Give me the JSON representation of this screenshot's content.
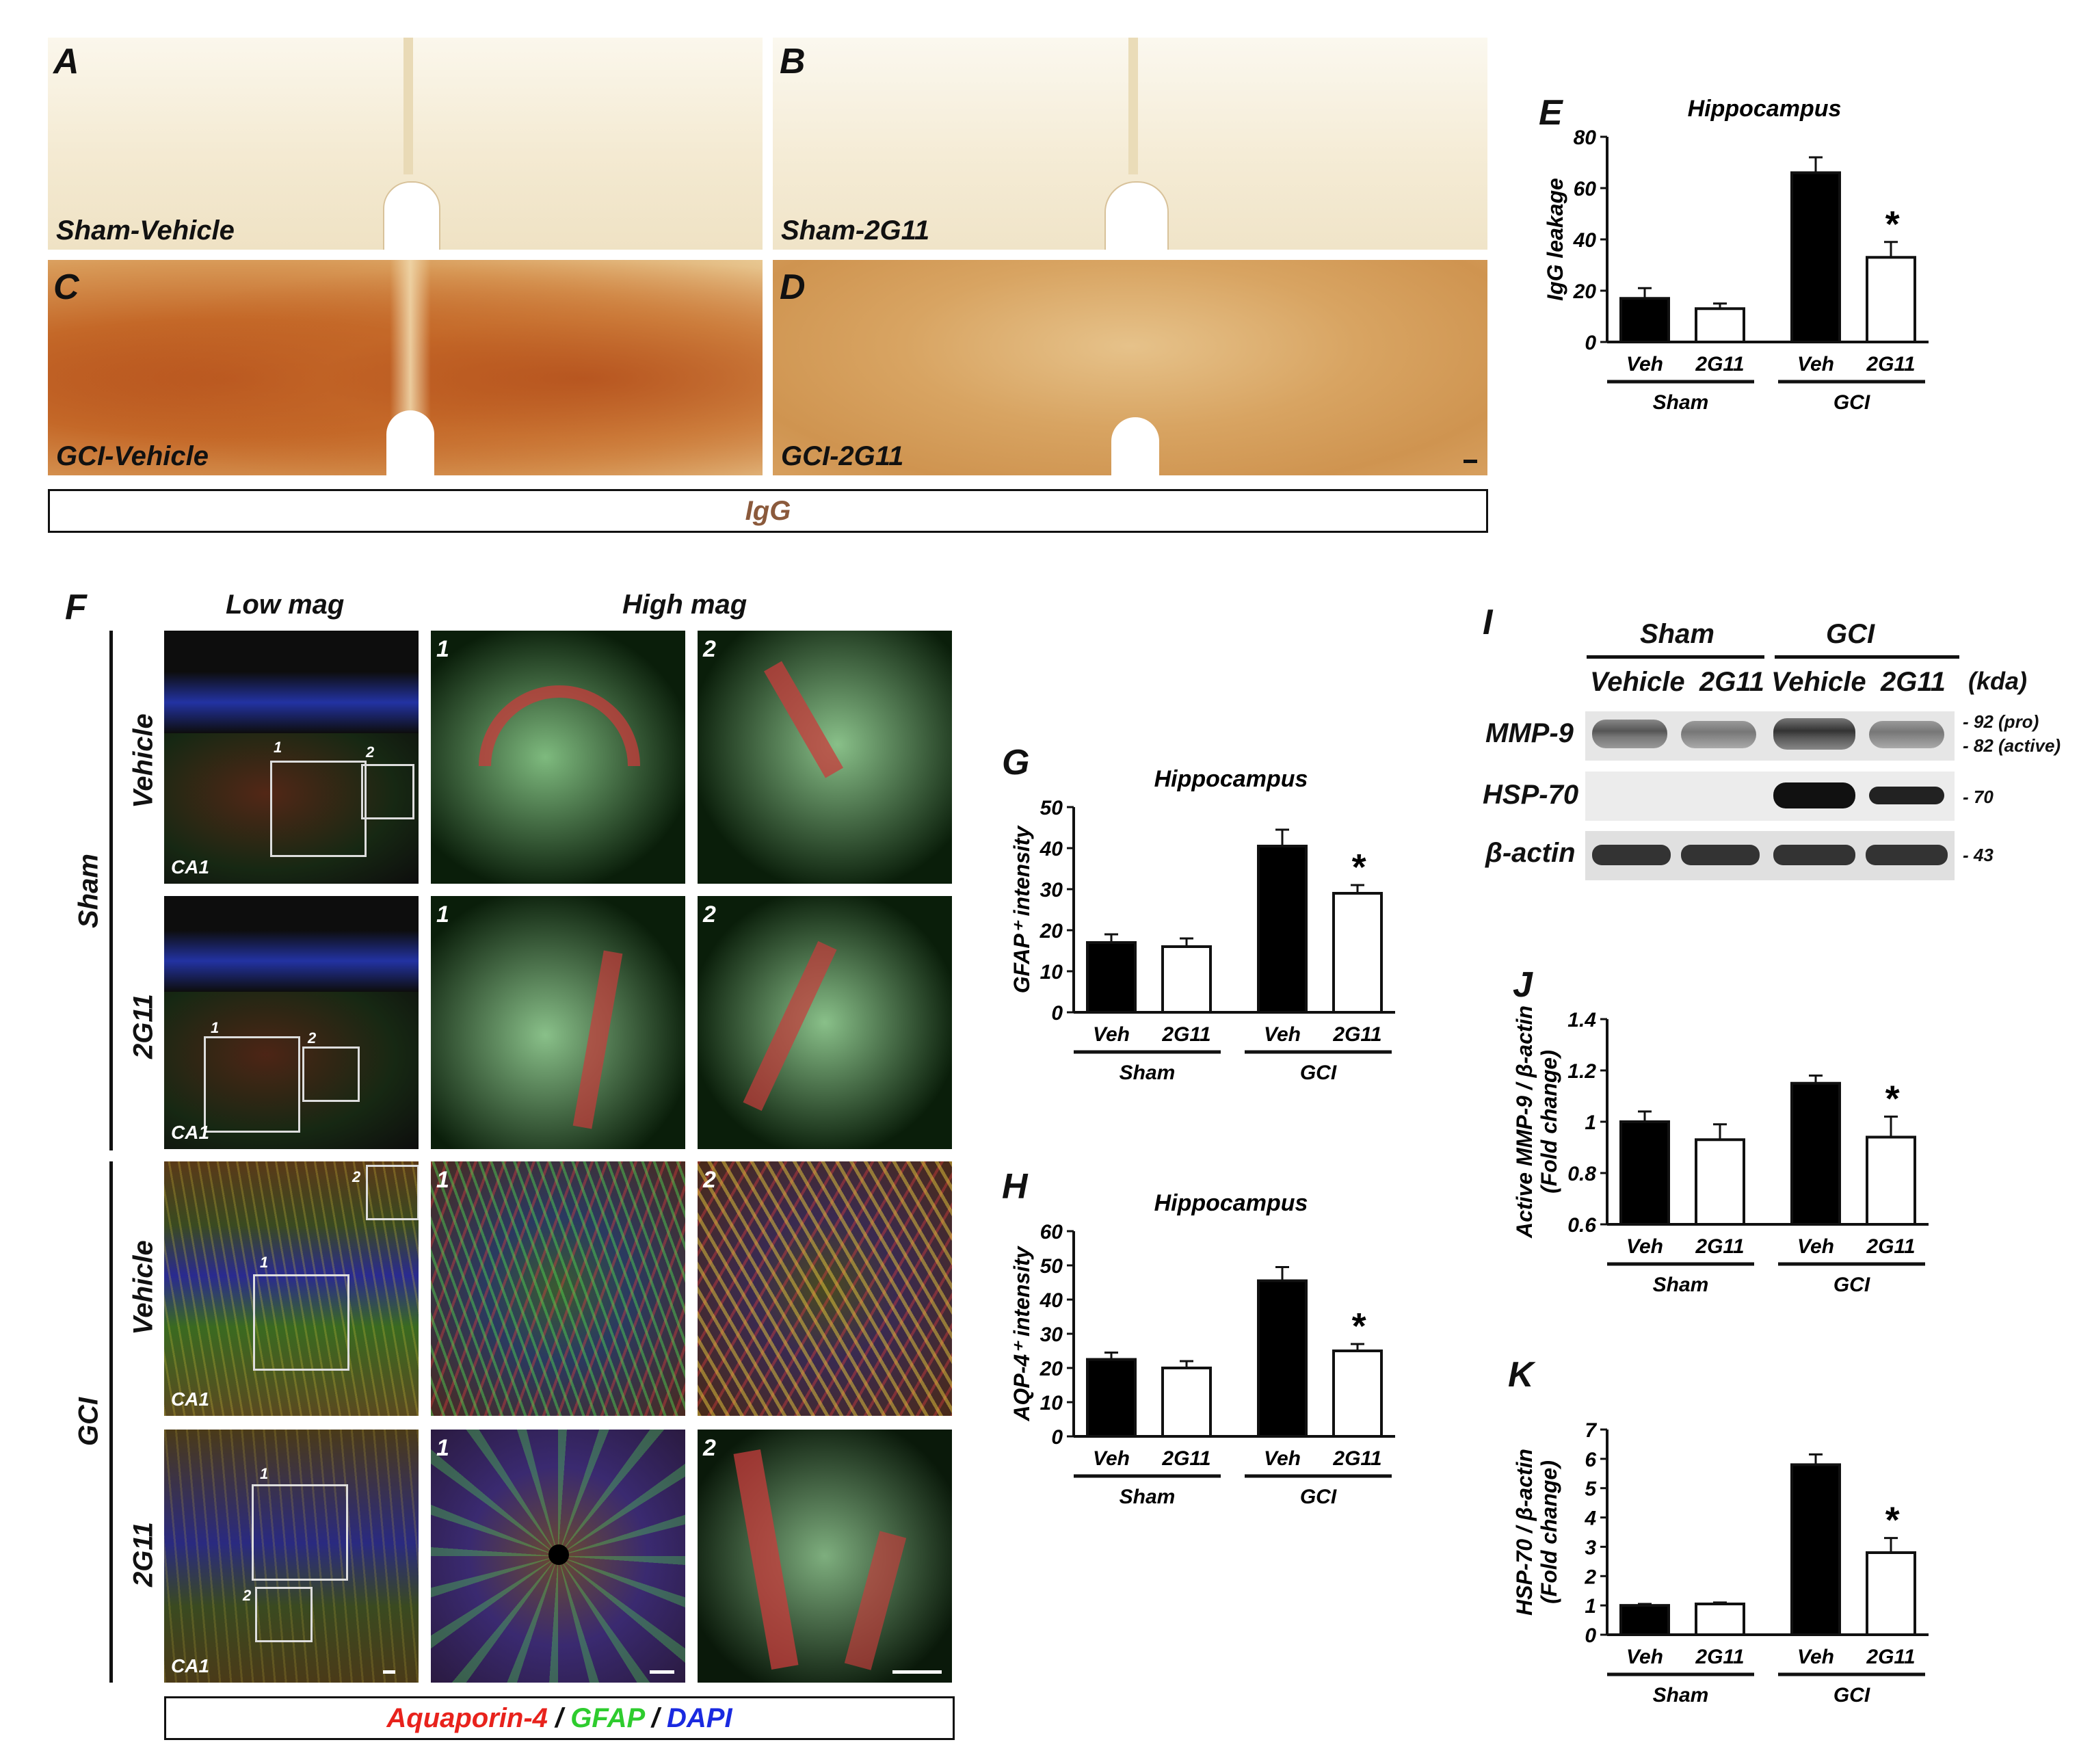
{
  "panelA": {
    "letter": "A",
    "caption": "Sham-Vehicle"
  },
  "panelB": {
    "letter": "B",
    "caption": "Sham-2G11"
  },
  "panelC": {
    "letter": "C",
    "caption": "GCI-Vehicle"
  },
  "panelD": {
    "letter": "D",
    "caption": "GCI-2G11"
  },
  "igg_label": "IgG",
  "panelF": {
    "letter": "F",
    "col_low": "Low mag",
    "col_high": "High mag",
    "group_sham": "Sham",
    "group_gci": "GCI",
    "row_vehicle": "Vehicle",
    "row_2g11": "2G11",
    "region": "CA1",
    "inset1": "1",
    "inset2": "2",
    "stain_a": "Aquaporin-4",
    "stain_sep1": " / ",
    "stain_b": "GFAP",
    "stain_sep2": " / ",
    "stain_c": "DAPI"
  },
  "panelI": {
    "letter": "I",
    "group_sham": "Sham",
    "group_gci": "GCI",
    "lanes": [
      "Vehicle",
      "2G11",
      "Vehicle",
      "2G11"
    ],
    "unit": "(kda)",
    "rows": [
      {
        "name": "MMP-9",
        "markers": [
          "- 92 (pro)",
          "- 82 (active)"
        ]
      },
      {
        "name": "HSP-70",
        "markers": [
          "- 70"
        ]
      },
      {
        "name": "β-actin",
        "markers": [
          "- 43"
        ]
      }
    ]
  },
  "chart_data": [
    {
      "id": "E",
      "type": "bar",
      "title": "Hippocampus",
      "ylabel": "IgG leakage",
      "ylim": [
        0,
        80
      ],
      "yticks": [
        "0",
        "20",
        "40",
        "60",
        "80"
      ],
      "categories": [
        "Veh",
        "2G11",
        "Veh",
        "2G11"
      ],
      "groups": [
        "Sham",
        "GCI"
      ],
      "values": [
        17,
        13,
        66,
        33
      ],
      "errors": [
        4,
        2,
        6,
        6
      ],
      "fills": [
        "#000000",
        "#ffffff",
        "#000000",
        "#ffffff"
      ],
      "significance": [
        false,
        false,
        false,
        true
      ],
      "sig_mark": "*"
    },
    {
      "id": "G",
      "type": "bar",
      "title": "Hippocampus",
      "ylabel": "GFAP⁺ intensity",
      "ylim": [
        0,
        50
      ],
      "yticks": [
        "0",
        "10",
        "20",
        "30",
        "40",
        "50"
      ],
      "categories": [
        "Veh",
        "2G11",
        "Veh",
        "2G11"
      ],
      "groups": [
        "Sham",
        "GCI"
      ],
      "values": [
        17,
        16,
        40.5,
        29
      ],
      "errors": [
        2,
        2,
        4,
        2
      ],
      "fills": [
        "#000000",
        "#ffffff",
        "#000000",
        "#ffffff"
      ],
      "significance": [
        false,
        false,
        false,
        true
      ],
      "sig_mark": "*"
    },
    {
      "id": "H",
      "type": "bar",
      "title": "Hippocampus",
      "ylabel": "AQP-4⁺ intensity",
      "ylim": [
        0,
        60
      ],
      "yticks": [
        "0",
        "10",
        "20",
        "30",
        "40",
        "50",
        "60"
      ],
      "categories": [
        "Veh",
        "2G11",
        "Veh",
        "2G11"
      ],
      "groups": [
        "Sham",
        "GCI"
      ],
      "values": [
        22.5,
        20,
        45.5,
        25
      ],
      "errors": [
        2,
        2,
        4,
        2
      ],
      "fills": [
        "#000000",
        "#ffffff",
        "#000000",
        "#ffffff"
      ],
      "significance": [
        false,
        false,
        false,
        true
      ],
      "sig_mark": "*"
    },
    {
      "id": "J",
      "type": "bar",
      "title": "",
      "ylabel": "Active MMP-9 / β-actin",
      "ylabel2": "(Fold change)",
      "ylim": [
        0.6,
        1.4
      ],
      "yticks": [
        "0.6",
        "0.8",
        "1",
        "1.2",
        "1.4"
      ],
      "categories": [
        "Veh",
        "2G11",
        "Veh",
        "2G11"
      ],
      "groups": [
        "Sham",
        "GCI"
      ],
      "values": [
        1.0,
        0.93,
        1.15,
        0.94
      ],
      "errors": [
        0.04,
        0.06,
        0.03,
        0.08
      ],
      "fills": [
        "#000000",
        "#ffffff",
        "#000000",
        "#ffffff"
      ],
      "significance": [
        false,
        false,
        false,
        true
      ],
      "sig_mark": "*"
    },
    {
      "id": "K",
      "type": "bar",
      "title": "",
      "ylabel": "HSP-70 / β-actin",
      "ylabel2": "(Fold change)",
      "ylim": [
        0,
        7
      ],
      "yticks": [
        "0",
        "1",
        "2",
        "3",
        "4",
        "5",
        "6",
        "7"
      ],
      "categories": [
        "Veh",
        "2G11",
        "Veh",
        "2G11"
      ],
      "groups": [
        "Sham",
        "GCI"
      ],
      "values": [
        1.0,
        1.05,
        5.8,
        2.8
      ],
      "errors": [
        0.05,
        0.05,
        0.35,
        0.5
      ],
      "fills": [
        "#000000",
        "#ffffff",
        "#000000",
        "#ffffff"
      ],
      "significance": [
        false,
        false,
        false,
        true
      ],
      "sig_mark": "*"
    }
  ]
}
